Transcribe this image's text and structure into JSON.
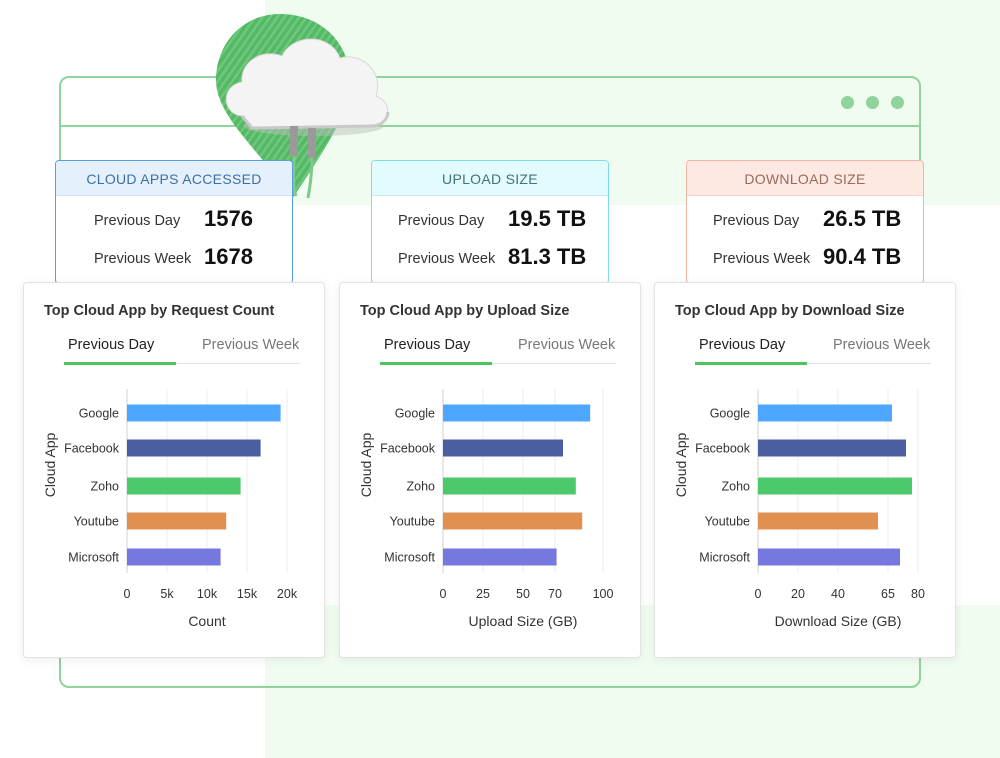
{
  "stats": [
    {
      "title": "CLOUD APPS ACCESSED",
      "prev_day_label": "Previous Day",
      "prev_day_value": "1576",
      "prev_week_label": "Previous Week",
      "prev_week_value": "1678"
    },
    {
      "title": "UPLOAD SIZE",
      "prev_day_label": "Previous Day",
      "prev_day_value": "19.5 TB",
      "prev_week_label": "Previous Week",
      "prev_week_value": "81.3 TB"
    },
    {
      "title": "DOWNLOAD SIZE",
      "prev_day_label": "Previous Day",
      "prev_day_value": "26.5 TB",
      "prev_week_label": "Previous Week",
      "prev_week_value": "90.4 TB"
    }
  ],
  "tabs": {
    "active": "Previous Day",
    "inactive": "Previous Week"
  },
  "colors": [
    "#4da6ff",
    "#4b5fa0",
    "#4cc96b",
    "#e09050",
    "#7777e0"
  ],
  "chart_data": [
    {
      "type": "bar",
      "title": "Top Cloud App by Request Count",
      "categories": [
        "Google",
        "Facebook",
        "Zoho",
        "Youtube",
        "Microsoft"
      ],
      "values": [
        19200,
        16700,
        14200,
        12400,
        11700
      ],
      "xlabel": "Count",
      "ylabel": "Cloud App",
      "xlim": [
        0,
        20000
      ],
      "ticks": [
        0,
        5000,
        10000,
        15000,
        20000
      ],
      "tick_labels": [
        "0",
        "5k",
        "10k",
        "15k",
        "20k"
      ],
      "grid": true
    },
    {
      "type": "bar",
      "title": "Top Cloud App by Upload Size",
      "categories": [
        "Google",
        "Facebook",
        "Zoho",
        "Youtube",
        "Microsoft"
      ],
      "values": [
        92,
        75,
        83,
        87,
        71
      ],
      "xlabel": "Upload Size (GB)",
      "ylabel": "Cloud App",
      "xlim": [
        0,
        100
      ],
      "ticks": [
        0,
        25,
        50,
        70,
        100
      ],
      "tick_labels": [
        "0",
        "25",
        "50",
        "70",
        "100"
      ],
      "grid": true
    },
    {
      "type": "bar",
      "title": "Top Cloud App by Download Size",
      "categories": [
        "Google",
        "Facebook",
        "Zoho",
        "Youtube",
        "Microsoft"
      ],
      "values": [
        67,
        74,
        77,
        60,
        71
      ],
      "xlabel": "Download Size (GB)",
      "ylabel": "Cloud App",
      "xlim": [
        0,
        80
      ],
      "ticks": [
        0,
        20,
        40,
        65,
        80
      ],
      "tick_labels": [
        "0",
        "20",
        "40",
        "65",
        "80"
      ],
      "grid": true
    }
  ]
}
